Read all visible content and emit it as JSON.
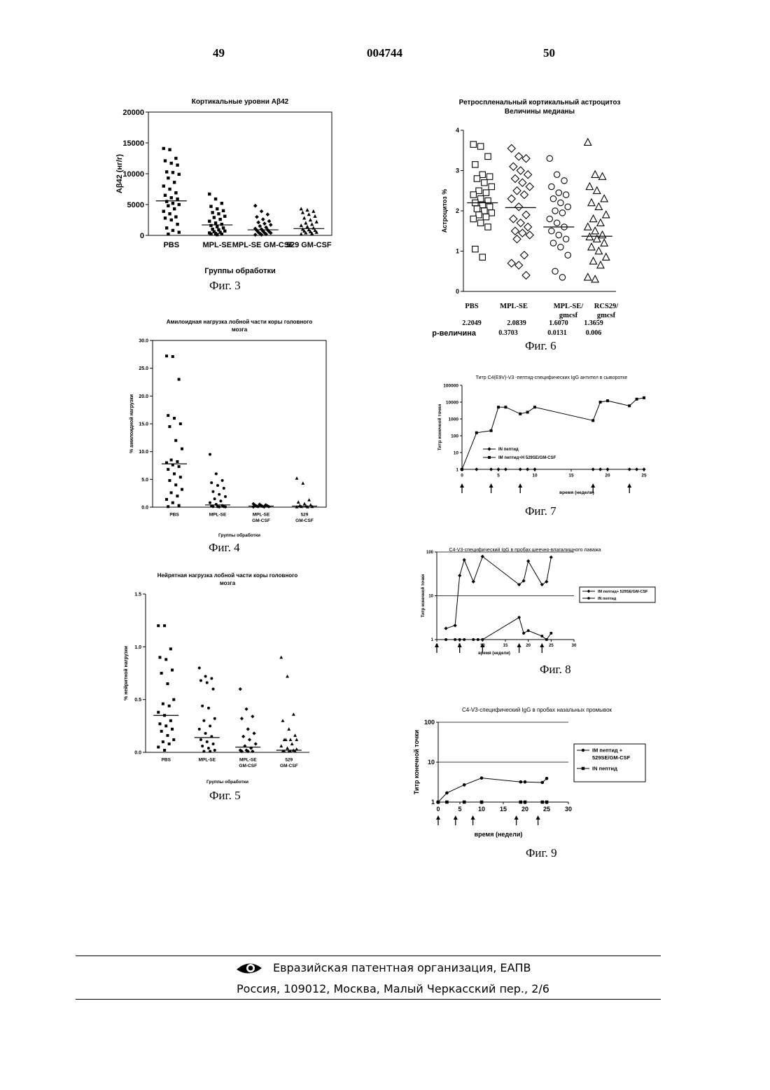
{
  "header": {
    "left_page": "49",
    "patent_number": "004744",
    "right_page": "50"
  },
  "footer": {
    "organization": "Евразийская патентная организация, ЕАПВ",
    "address": "Россия, 109012, Москва, Малый Черкасский пер., 2/6"
  },
  "chart_data": [
    {
      "id": "fig3",
      "type": "scatter",
      "caption": "Фиг. 3",
      "title": "Кортикальные уровни Aβ42",
      "xlabel": "Группы обработки",
      "ylabel": "Aβ42 (нг/г)",
      "ylim": [
        0,
        20000
      ],
      "yticks": [
        "0",
        "5000",
        "10000",
        "15000",
        "20000"
      ],
      "categories": [
        "PBS",
        "MPL-SE",
        "MPL-SE GM-CSF",
        "529 GM-CSF"
      ],
      "medians": [
        5600,
        1700,
        900,
        1100
      ],
      "series": [
        {
          "marker": "square",
          "values": [
            14100,
            13900,
            12500,
            12100,
            11700,
            11400,
            10300,
            10200,
            9900,
            9300,
            8600,
            8000,
            7500,
            6900,
            6500,
            6100,
            5900,
            5500,
            5200,
            5000,
            4800,
            4300,
            3900,
            3500,
            3000,
            2800,
            2500,
            1800,
            1200,
            800,
            500,
            200
          ]
        },
        {
          "marker": "square",
          "values": [
            6700,
            5900,
            5200,
            4700,
            4300,
            4000,
            3700,
            3500,
            3100,
            2900,
            2600,
            2300,
            2000,
            1800,
            1600,
            1400,
            1200,
            1000,
            900,
            700,
            600,
            500,
            400,
            300,
            200,
            200,
            100
          ]
        },
        {
          "marker": "diamond",
          "values": [
            4800,
            3900,
            3400,
            3000,
            2600,
            2300,
            2100,
            1900,
            1700,
            1500,
            1300,
            1100,
            1000,
            900,
            800,
            700,
            600,
            500,
            400,
            400,
            300,
            200,
            100,
            100
          ]
        },
        {
          "marker": "triangle",
          "values": [
            4300,
            4100,
            3900,
            3700,
            3400,
            3100,
            2800,
            2500,
            2200,
            2000,
            1800,
            1600,
            1400,
            1200,
            1000,
            900,
            800,
            700,
            600,
            500,
            400,
            300,
            200
          ]
        }
      ]
    },
    {
      "id": "fig4",
      "type": "scatter",
      "caption": "Фиг. 4",
      "title_lines": [
        "Амилоидная нагрузка лобной части коры головного",
        "мозга"
      ],
      "xlabel": "Группы обработки",
      "ylabel": "% амилоидной нагрузки",
      "ylim": [
        0,
        30
      ],
      "yticks": [
        "0.0",
        "5.0",
        "10.0",
        "15.0",
        "20.0",
        "25.0",
        "30.0"
      ],
      "categories": [
        [
          "PBS"
        ],
        [
          "MPL-SE"
        ],
        [
          "MPL-SE",
          "GM-CSF"
        ],
        [
          "529",
          "GM-CSF"
        ]
      ],
      "medians": [
        7.8,
        0.4,
        0.2,
        0.2
      ],
      "series": [
        {
          "marker": "square",
          "values": [
            27.2,
            27.1,
            23.0,
            16.5,
            16.0,
            15.0,
            14.5,
            12.0,
            10.5,
            8.5,
            8.2,
            8.0,
            7.6,
            7.3,
            6.8,
            6.0,
            5.4,
            4.8,
            4.0,
            3.2,
            2.6,
            2.0,
            1.4,
            0.8,
            0.3,
            0.1
          ]
        },
        {
          "marker": "circle",
          "values": [
            9.5,
            6.0,
            4.8,
            4.4,
            3.9,
            3.4,
            2.8,
            2.3,
            1.9,
            1.5,
            1.1,
            0.8,
            0.5,
            0.3,
            0.2,
            0.1,
            0.1,
            0.1,
            0.05,
            0.05
          ]
        },
        {
          "marker": "diamond",
          "values": [
            0.6,
            0.5,
            0.4,
            0.35,
            0.3,
            0.25,
            0.2,
            0.15,
            0.1,
            0.1,
            0.05,
            0.05
          ]
        },
        {
          "marker": "triangle",
          "values": [
            5.2,
            4.3,
            1.3,
            0.9,
            0.6,
            0.4,
            0.3,
            0.2,
            0.1,
            0.1,
            0.05,
            0.05
          ]
        }
      ]
    },
    {
      "id": "fig5",
      "type": "scatter",
      "caption": "Фиг. 5",
      "title_lines": [
        "Нейрятная нагрузка лобной части коры головного",
        "мозга"
      ],
      "xlabel": "Группы обработки",
      "ylabel": "% нейритной нагрузки",
      "ylim": [
        0,
        1.5
      ],
      "yticks": [
        "0.0",
        "0.5",
        "1.0",
        "1.5"
      ],
      "categories": [
        [
          "PBS"
        ],
        [
          "MPL-SE"
        ],
        [
          "MPL-SE",
          "GM-CSF"
        ],
        [
          "529",
          "GM-CSF"
        ]
      ],
      "medians": [
        0.35,
        0.14,
        0.05,
        0.02
      ],
      "series": [
        {
          "marker": "square",
          "values": [
            1.2,
            1.2,
            0.98,
            0.9,
            0.88,
            0.78,
            0.75,
            0.65,
            0.5,
            0.46,
            0.44,
            0.38,
            0.35,
            0.3,
            0.27,
            0.25,
            0.22,
            0.2,
            0.16,
            0.12,
            0.1,
            0.08,
            0.05,
            0.02
          ]
        },
        {
          "marker": "circle",
          "values": [
            0.8,
            0.72,
            0.7,
            0.68,
            0.66,
            0.6,
            0.44,
            0.42,
            0.32,
            0.3,
            0.25,
            0.22,
            0.18,
            0.15,
            0.12,
            0.1,
            0.08,
            0.06,
            0.04,
            0.02,
            0.01,
            0.01
          ]
        },
        {
          "marker": "diamond",
          "values": [
            0.6,
            0.41,
            0.34,
            0.32,
            0.22,
            0.18,
            0.15,
            0.12,
            0.08,
            0.06,
            0.04,
            0.02,
            0.02,
            0.01,
            0.01,
            0.01
          ]
        },
        {
          "marker": "triangle",
          "values": [
            0.9,
            0.72,
            0.36,
            0.3,
            0.22,
            0.16,
            0.12,
            0.12,
            0.12,
            0.12,
            0.08,
            0.06,
            0.04,
            0.02,
            0.01,
            0.01,
            0.01,
            0.01,
            0.01,
            0.03
          ]
        }
      ]
    },
    {
      "id": "fig6",
      "type": "scatter",
      "caption": "Фиг. 6",
      "title_lines": [
        "Ретроспленальный кортикальный астроцитоз",
        "Величины медианы"
      ],
      "ylabel": "Астроцитоз %",
      "ylim": [
        0,
        4
      ],
      "yticks": [
        "0",
        "1",
        "2",
        "3",
        "4"
      ],
      "categories": [
        "PBS",
        "MPL-SE",
        "MPL-SE/ gmcsf",
        "RCS29/ gmcsf"
      ],
      "median_labels": [
        "2.2049",
        "2.0839",
        "1.6070",
        "1.3659"
      ],
      "p_label": "р-величина",
      "p_values": [
        "0.3703",
        "0.0131",
        "0.006"
      ],
      "medians": [
        2.2,
        2.08,
        1.6,
        1.37
      ],
      "series": [
        {
          "marker": "open-square",
          "values": [
            3.65,
            3.6,
            3.35,
            3.15,
            2.9,
            2.85,
            2.8,
            2.7,
            2.6,
            2.5,
            2.45,
            2.4,
            2.3,
            2.25,
            2.2,
            2.15,
            2.1,
            2.05,
            2.0,
            1.95,
            1.9,
            1.85,
            1.8,
            1.7,
            1.6,
            1.05,
            0.85
          ]
        },
        {
          "marker": "open-diamond",
          "values": [
            3.55,
            3.35,
            3.3,
            3.1,
            3.0,
            2.9,
            2.8,
            2.7,
            2.6,
            2.5,
            2.4,
            2.3,
            2.1,
            1.9,
            1.8,
            1.7,
            1.6,
            1.5,
            1.45,
            1.4,
            1.3,
            0.9,
            0.7,
            0.65,
            0.4
          ]
        },
        {
          "marker": "open-circle",
          "values": [
            3.3,
            2.9,
            2.75,
            2.6,
            2.45,
            2.4,
            2.3,
            2.2,
            2.1,
            2.0,
            1.95,
            1.8,
            1.7,
            1.6,
            1.5,
            1.4,
            1.3,
            1.2,
            1.1,
            0.9,
            0.5,
            0.35
          ]
        },
        {
          "marker": "open-triangle",
          "values": [
            3.7,
            2.9,
            2.85,
            2.6,
            2.5,
            2.3,
            2.2,
            2.1,
            1.9,
            1.8,
            1.7,
            1.6,
            1.5,
            1.4,
            1.35,
            1.3,
            1.2,
            1.1,
            1.0,
            0.85,
            0.75,
            0.65,
            0.35,
            0.3
          ]
        }
      ]
    },
    {
      "id": "fig7",
      "type": "line",
      "caption": "Фиг. 7",
      "title": "Титр C4(E9V)-V3 -пептид-специфических IgG антител в сыворотке",
      "xlabel": "время (недели)",
      "ylabel": "Титр конечной точки",
      "yscale": "log",
      "ylim": [
        1,
        100000
      ],
      "yticks": [
        "1",
        "10",
        "100",
        "1000",
        "10000",
        "100000"
      ],
      "xlim": [
        0,
        25
      ],
      "xticks": [
        "0",
        "5",
        "10",
        "15",
        "20",
        "25"
      ],
      "arrows_at": [
        0,
        4,
        8,
        18,
        23
      ],
      "series": [
        {
          "name": "IN пептид",
          "marker": "diamond",
          "x": [
            0,
            2,
            4,
            5,
            6,
            8,
            9,
            10,
            18,
            19,
            20,
            23,
            24,
            25
          ],
          "y": [
            1,
            1,
            1,
            1,
            1,
            1,
            1,
            1,
            1,
            1,
            1,
            1,
            1,
            1
          ]
        },
        {
          "name": "IM пептид+Н 529SE/GM-CSF",
          "marker": "square",
          "x": [
            0,
            2,
            4,
            5,
            6,
            8,
            9,
            10,
            18,
            19,
            20,
            23,
            24,
            25
          ],
          "y": [
            1,
            150,
            200,
            5000,
            5000,
            2000,
            2500,
            5000,
            800,
            10000,
            12000,
            6000,
            15000,
            18000
          ]
        }
      ]
    },
    {
      "id": "fig8",
      "type": "line",
      "caption": "Фиг. 8",
      "title": "C4-V3-специфический IgG в пробах шеечно-влагалищного лаважа",
      "xlabel": "время (недели)",
      "ylabel": "Титр конечной точки",
      "yscale": "log",
      "ylim": [
        1,
        100
      ],
      "yticks": [
        "1",
        "10",
        "100"
      ],
      "xlim": [
        0,
        30
      ],
      "xticks": [
        "0",
        "5",
        "10",
        "15",
        "20",
        "25",
        "30"
      ],
      "arrows_at": [
        0,
        5,
        10,
        18,
        23
      ],
      "series": [
        {
          "name": "IM пептид+ 529SE/GM-CSF",
          "marker": "diamond",
          "x": [
            2,
            4,
            5,
            6,
            8,
            10,
            18,
            19,
            20,
            23,
            24,
            25
          ],
          "y": [
            1.8,
            2.1,
            29,
            66,
            21,
            79,
            18,
            22,
            62,
            18,
            21,
            76
          ]
        },
        {
          "name": "IN пептид",
          "marker": "circle",
          "x": [
            2,
            4,
            5,
            6,
            8,
            9,
            10,
            18,
            19,
            20,
            23,
            24,
            25
          ],
          "y": [
            1,
            1,
            1,
            1,
            1,
            1,
            1,
            3.2,
            1.4,
            1.6,
            1.2,
            1,
            1.4
          ]
        }
      ]
    },
    {
      "id": "fig9",
      "type": "line",
      "caption": "Фиг. 9",
      "title": "C4-V3-специфический IgG в пробах назальных промывок",
      "xlabel": "время (недели)",
      "ylabel": "Титр конечной точки",
      "yscale": "log",
      "ylim": [
        1,
        100
      ],
      "yticks": [
        "1",
        "10",
        "100"
      ],
      "xlim": [
        0,
        30
      ],
      "xticks": [
        "0",
        "5",
        "10",
        "15",
        "20",
        "25",
        "30"
      ],
      "arrows_at": [
        0,
        4,
        8,
        18,
        23
      ],
      "series": [
        {
          "name": "IM пептид + 529SE/GM-CSF",
          "marker": "circle",
          "x": [
            0,
            2,
            6,
            10,
            19,
            20,
            24,
            25
          ],
          "y": [
            1,
            1.7,
            2.7,
            4,
            3.2,
            3.2,
            3.1,
            3.9
          ]
        },
        {
          "name": "IN пептид",
          "marker": "square",
          "x": [
            0,
            2,
            6,
            10,
            19,
            20,
            24,
            25
          ],
          "y": [
            1,
            1,
            1,
            1,
            1,
            1,
            1,
            1
          ]
        }
      ]
    }
  ]
}
